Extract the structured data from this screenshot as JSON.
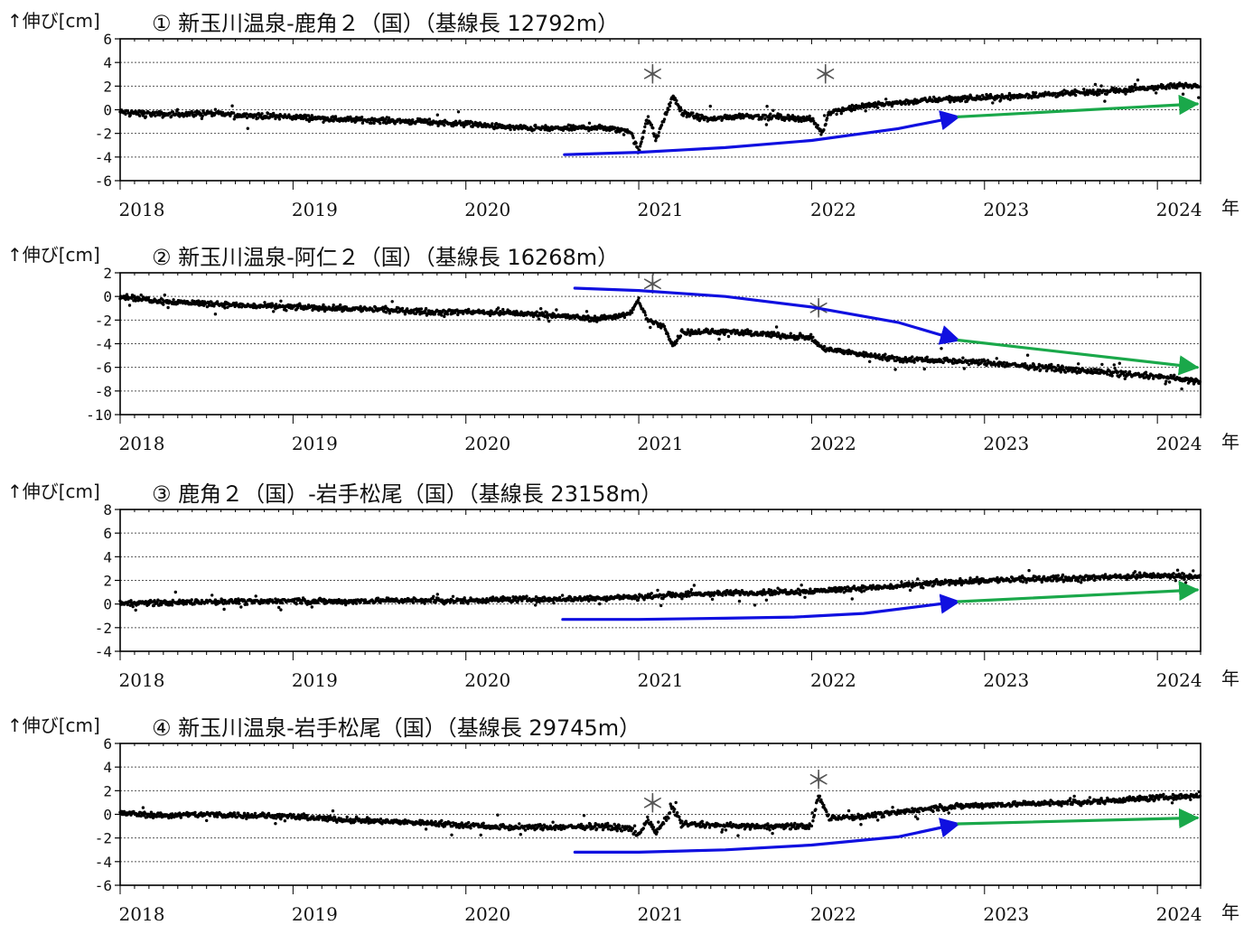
{
  "x_unit": "年",
  "colors": {
    "accelerating_trend": "#1010e0",
    "linear_trend": "#1aa84a",
    "data_points": "#000000",
    "grid": "#555555"
  },
  "chart_data": [
    {
      "type": "scatter",
      "title": "① 新玉川温泉-鹿角２（国）（基線長 12792m）",
      "ylabel": "↑伸び[cm]",
      "ylim": [
        -6,
        6
      ],
      "yticks": [
        6,
        4,
        2,
        0,
        -2,
        -4,
        -6
      ],
      "xlim": [
        2018,
        2024.25
      ],
      "xticks": [
        2018,
        2019,
        2020,
        2021,
        2022,
        2023,
        2024
      ],
      "grid": true,
      "event_markers": [
        {
          "x": 2021.08,
          "y": 3.0,
          "label": "＊"
        },
        {
          "x": 2022.08,
          "y": 3.0,
          "label": "＊"
        }
      ],
      "series": [
        {
          "values": [
            [
              2018.0,
              -0.2
            ],
            [
              2018.25,
              -0.4
            ],
            [
              2018.5,
              -0.3
            ],
            [
              2018.75,
              -0.5
            ],
            [
              2019.0,
              -0.6
            ],
            [
              2019.25,
              -0.8
            ],
            [
              2019.5,
              -0.9
            ],
            [
              2019.75,
              -1.0
            ],
            [
              2020.0,
              -1.2
            ],
            [
              2020.25,
              -1.5
            ],
            [
              2020.5,
              -1.6
            ],
            [
              2020.75,
              -1.5
            ],
            [
              2020.95,
              -1.8
            ],
            [
              2021.0,
              -3.6
            ],
            [
              2021.05,
              -0.5
            ],
            [
              2021.1,
              -2.5
            ],
            [
              2021.2,
              1.2
            ],
            [
              2021.25,
              -0.3
            ],
            [
              2021.4,
              -0.8
            ],
            [
              2021.6,
              -0.5
            ],
            [
              2021.8,
              -0.6
            ],
            [
              2022.0,
              -0.8
            ],
            [
              2022.06,
              -2.0
            ],
            [
              2022.1,
              -0.2
            ],
            [
              2022.3,
              0.3
            ],
            [
              2022.5,
              0.6
            ],
            [
              2022.75,
              0.9
            ],
            [
              2023.0,
              1.0
            ],
            [
              2023.25,
              1.2
            ],
            [
              2023.5,
              1.4
            ],
            [
              2023.75,
              1.6
            ],
            [
              2024.0,
              1.9
            ],
            [
              2024.25,
              2.1
            ]
          ]
        }
      ],
      "trend_arrows": [
        {
          "kind": "accelerating",
          "color": "#1010e0",
          "points": [
            [
              2020.57,
              -3.8
            ],
            [
              2021.0,
              -3.6
            ],
            [
              2021.5,
              -3.2
            ],
            [
              2022.0,
              -2.6
            ],
            [
              2022.5,
              -1.6
            ],
            [
              2022.85,
              -0.6
            ]
          ]
        },
        {
          "kind": "linear",
          "color": "#1aa84a",
          "points": [
            [
              2022.85,
              -0.6
            ],
            [
              2024.23,
              0.5
            ]
          ]
        }
      ]
    },
    {
      "type": "scatter",
      "title": "② 新玉川温泉-阿仁２（国）（基線長 16268m）",
      "ylabel": "↑伸び[cm]",
      "ylim": [
        -10,
        2
      ],
      "yticks": [
        2,
        0,
        -2,
        -4,
        -6,
        -8,
        -10
      ],
      "xlim": [
        2018,
        2024.25
      ],
      "xticks": [
        2018,
        2019,
        2020,
        2021,
        2022,
        2023,
        2024
      ],
      "grid": true,
      "event_markers": [
        {
          "x": 2021.08,
          "y": 1.0,
          "label": "＊"
        },
        {
          "x": 2022.04,
          "y": -1.0,
          "label": "＊"
        }
      ],
      "series": [
        {
          "values": [
            [
              2018.0,
              0.0
            ],
            [
              2018.25,
              -0.4
            ],
            [
              2018.5,
              -0.6
            ],
            [
              2018.75,
              -0.8
            ],
            [
              2019.0,
              -0.9
            ],
            [
              2019.25,
              -1.0
            ],
            [
              2019.5,
              -1.1
            ],
            [
              2019.75,
              -1.3
            ],
            [
              2020.0,
              -1.3
            ],
            [
              2020.25,
              -1.4
            ],
            [
              2020.5,
              -1.6
            ],
            [
              2020.75,
              -1.9
            ],
            [
              2020.95,
              -1.5
            ],
            [
              2021.0,
              -0.3
            ],
            [
              2021.05,
              -2.0
            ],
            [
              2021.15,
              -2.6
            ],
            [
              2021.2,
              -4.2
            ],
            [
              2021.25,
              -3.0
            ],
            [
              2021.5,
              -3.0
            ],
            [
              2021.75,
              -3.2
            ],
            [
              2022.0,
              -3.5
            ],
            [
              2022.06,
              -4.4
            ],
            [
              2022.1,
              -4.5
            ],
            [
              2022.3,
              -4.9
            ],
            [
              2022.5,
              -5.3
            ],
            [
              2022.75,
              -5.4
            ],
            [
              2023.0,
              -5.6
            ],
            [
              2023.25,
              -5.9
            ],
            [
              2023.5,
              -6.2
            ],
            [
              2023.75,
              -6.5
            ],
            [
              2024.0,
              -6.8
            ],
            [
              2024.25,
              -7.2
            ]
          ]
        }
      ],
      "trend_arrows": [
        {
          "kind": "accelerating",
          "color": "#1010e0",
          "points": [
            [
              2020.63,
              0.7
            ],
            [
              2021.0,
              0.5
            ],
            [
              2021.5,
              0.0
            ],
            [
              2022.0,
              -0.9
            ],
            [
              2022.5,
              -2.2
            ],
            [
              2022.85,
              -3.7
            ]
          ]
        },
        {
          "kind": "linear",
          "color": "#1aa84a",
          "points": [
            [
              2022.85,
              -3.7
            ],
            [
              2024.23,
              -6.0
            ]
          ]
        }
      ]
    },
    {
      "type": "scatter",
      "title": "③ 鹿角２（国）-岩手松尾（国）（基線長 23158m）",
      "ylabel": "↑伸び[cm]",
      "ylim": [
        -4,
        8
      ],
      "yticks": [
        8,
        6,
        4,
        2,
        0,
        -2,
        -4
      ],
      "xlim": [
        2018,
        2024.25
      ],
      "xticks": [
        2018,
        2019,
        2020,
        2021,
        2022,
        2023,
        2024
      ],
      "grid": true,
      "event_markers": [],
      "series": [
        {
          "values": [
            [
              2018.0,
              0.1
            ],
            [
              2018.25,
              0.1
            ],
            [
              2018.5,
              0.2
            ],
            [
              2018.75,
              0.2
            ],
            [
              2019.0,
              0.3
            ],
            [
              2019.25,
              0.2
            ],
            [
              2019.5,
              0.3
            ],
            [
              2019.75,
              0.3
            ],
            [
              2020.0,
              0.3
            ],
            [
              2020.25,
              0.4
            ],
            [
              2020.5,
              0.4
            ],
            [
              2020.75,
              0.5
            ],
            [
              2021.0,
              0.6
            ],
            [
              2021.25,
              0.8
            ],
            [
              2021.5,
              0.9
            ],
            [
              2021.75,
              1.0
            ],
            [
              2022.0,
              1.1
            ],
            [
              2022.25,
              1.3
            ],
            [
              2022.5,
              1.5
            ],
            [
              2022.75,
              1.8
            ],
            [
              2023.0,
              2.0
            ],
            [
              2023.25,
              2.1
            ],
            [
              2023.5,
              2.2
            ],
            [
              2023.75,
              2.3
            ],
            [
              2024.0,
              2.4
            ],
            [
              2024.25,
              2.3
            ]
          ]
        }
      ],
      "trend_arrows": [
        {
          "kind": "accelerating",
          "color": "#1010e0",
          "points": [
            [
              2020.56,
              -1.3
            ],
            [
              2021.0,
              -1.3
            ],
            [
              2021.5,
              -1.2
            ],
            [
              2021.9,
              -1.1
            ],
            [
              2022.3,
              -0.8
            ],
            [
              2022.85,
              0.2
            ]
          ]
        },
        {
          "kind": "linear",
          "color": "#1aa84a",
          "points": [
            [
              2022.85,
              0.2
            ],
            [
              2024.23,
              1.2
            ]
          ]
        }
      ]
    },
    {
      "type": "scatter",
      "title": "④ 新玉川温泉-岩手松尾（国）（基線長 29745m）",
      "ylabel": "↑伸び[cm]",
      "ylim": [
        -6,
        6
      ],
      "yticks": [
        6,
        4,
        2,
        0,
        -2,
        -4,
        -6
      ],
      "xlim": [
        2018,
        2024.25
      ],
      "xticks": [
        2018,
        2019,
        2020,
        2021,
        2022,
        2023,
        2024
      ],
      "grid": true,
      "event_markers": [
        {
          "x": 2021.08,
          "y": 0.9,
          "label": "＊"
        },
        {
          "x": 2022.04,
          "y": 2.9,
          "label": "＊"
        }
      ],
      "series": [
        {
          "values": [
            [
              2018.0,
              0.1
            ],
            [
              2018.25,
              -0.1
            ],
            [
              2018.5,
              0.0
            ],
            [
              2018.75,
              -0.1
            ],
            [
              2019.0,
              -0.2
            ],
            [
              2019.25,
              -0.4
            ],
            [
              2019.5,
              -0.6
            ],
            [
              2019.75,
              -0.7
            ],
            [
              2020.0,
              -0.9
            ],
            [
              2020.25,
              -1.1
            ],
            [
              2020.5,
              -1.1
            ],
            [
              2020.75,
              -1.0
            ],
            [
              2020.95,
              -1.2
            ],
            [
              2021.0,
              -1.8
            ],
            [
              2021.05,
              -0.4
            ],
            [
              2021.1,
              -1.6
            ],
            [
              2021.2,
              0.5
            ],
            [
              2021.25,
              -0.8
            ],
            [
              2021.5,
              -1.0
            ],
            [
              2021.75,
              -1.0
            ],
            [
              2022.0,
              -1.0
            ],
            [
              2022.04,
              1.6
            ],
            [
              2022.1,
              -0.3
            ],
            [
              2022.3,
              -0.2
            ],
            [
              2022.5,
              0.2
            ],
            [
              2022.75,
              0.6
            ],
            [
              2023.0,
              0.8
            ],
            [
              2023.25,
              0.9
            ],
            [
              2023.5,
              1.0
            ],
            [
              2023.75,
              1.2
            ],
            [
              2024.0,
              1.4
            ],
            [
              2024.25,
              1.6
            ]
          ]
        }
      ],
      "trend_arrows": [
        {
          "kind": "accelerating",
          "color": "#1010e0",
          "points": [
            [
              2020.63,
              -3.2
            ],
            [
              2021.0,
              -3.2
            ],
            [
              2021.5,
              -3.0
            ],
            [
              2022.0,
              -2.6
            ],
            [
              2022.5,
              -1.9
            ],
            [
              2022.85,
              -0.8
            ]
          ]
        },
        {
          "kind": "linear",
          "color": "#1aa84a",
          "points": [
            [
              2022.85,
              -0.8
            ],
            [
              2024.23,
              -0.3
            ]
          ]
        }
      ]
    }
  ]
}
